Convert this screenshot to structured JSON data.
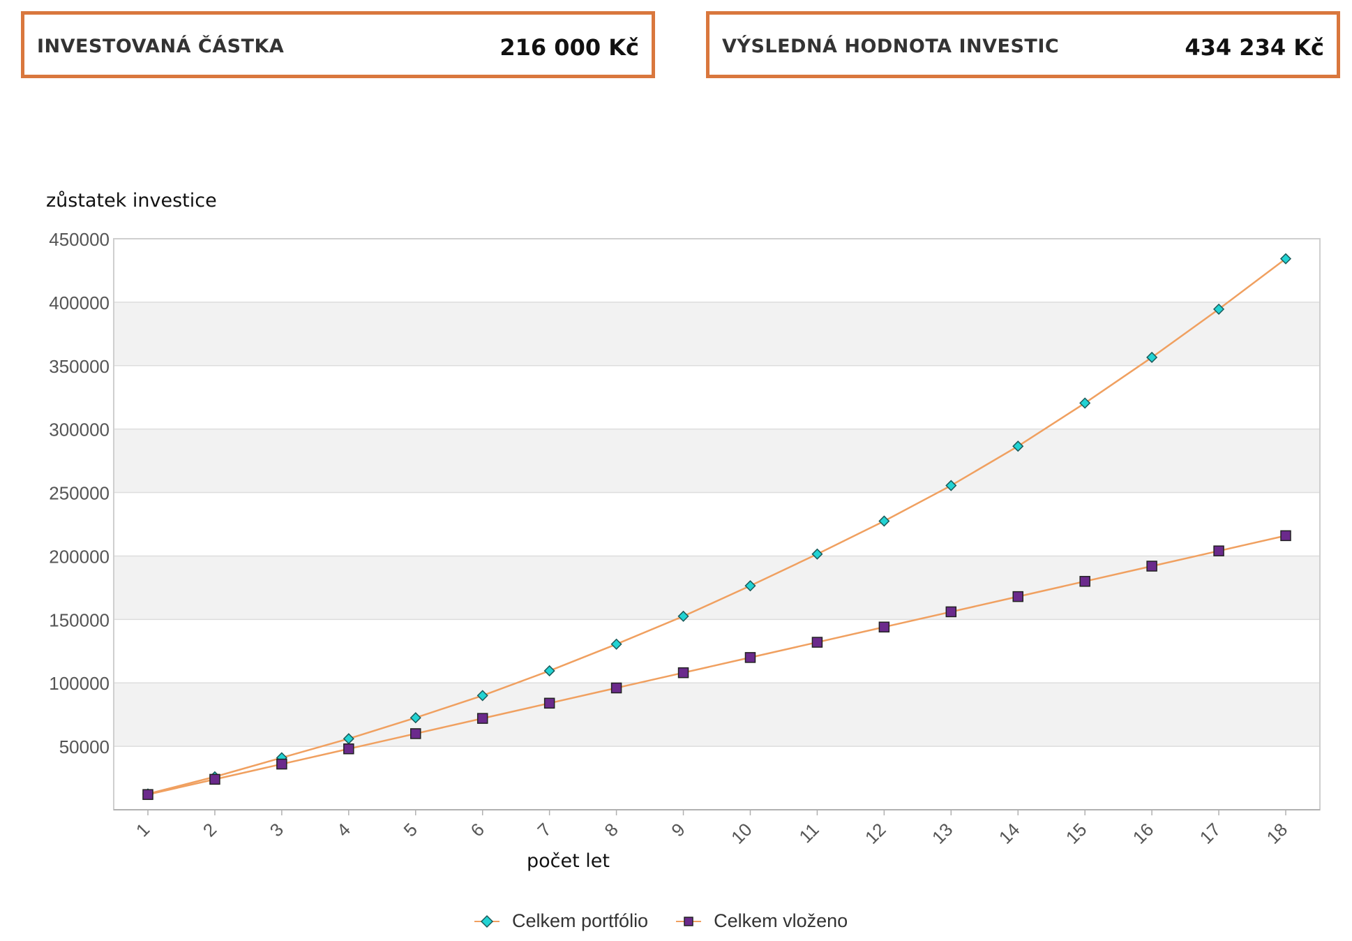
{
  "summary": {
    "invested_label": "INVESTOVANÁ ČÁSTKA",
    "invested_value": "216 000 Kč",
    "result_label": "VÝSLEDNÁ HODNOTA INVESTIC",
    "result_value": "434 234 Kč"
  },
  "colors": {
    "accent": "#d9773d",
    "line": "#f0a060",
    "portfolio_marker": "#22d3d3",
    "deposit_marker": "#6b2a8c",
    "band": "#f2f2f2"
  },
  "chart_data": {
    "type": "line",
    "xlabel": "počet let",
    "ylabel": "zůstatek investice",
    "ylim": [
      0,
      450000
    ],
    "yticks": [
      50000,
      100000,
      150000,
      200000,
      250000,
      300000,
      350000,
      400000,
      450000
    ],
    "x": [
      1,
      2,
      3,
      4,
      5,
      6,
      7,
      8,
      9,
      10,
      11,
      12,
      13,
      14,
      15,
      16,
      17,
      18
    ],
    "grid": true,
    "legend_position": "bottom-center",
    "series": [
      {
        "name": "Celkem portfólio",
        "marker": "diamond",
        "values": [
          12500,
          26000,
          41000,
          56000,
          72500,
          90000,
          109500,
          130500,
          152500,
          176500,
          201500,
          227500,
          255500,
          286500,
          320500,
          356500,
          394500,
          434234
        ]
      },
      {
        "name": "Celkem vloženo",
        "marker": "square",
        "values": [
          12000,
          24000,
          36000,
          48000,
          60000,
          72000,
          84000,
          96000,
          108000,
          120000,
          132000,
          144000,
          156000,
          168000,
          180000,
          192000,
          204000,
          216000
        ]
      }
    ]
  }
}
